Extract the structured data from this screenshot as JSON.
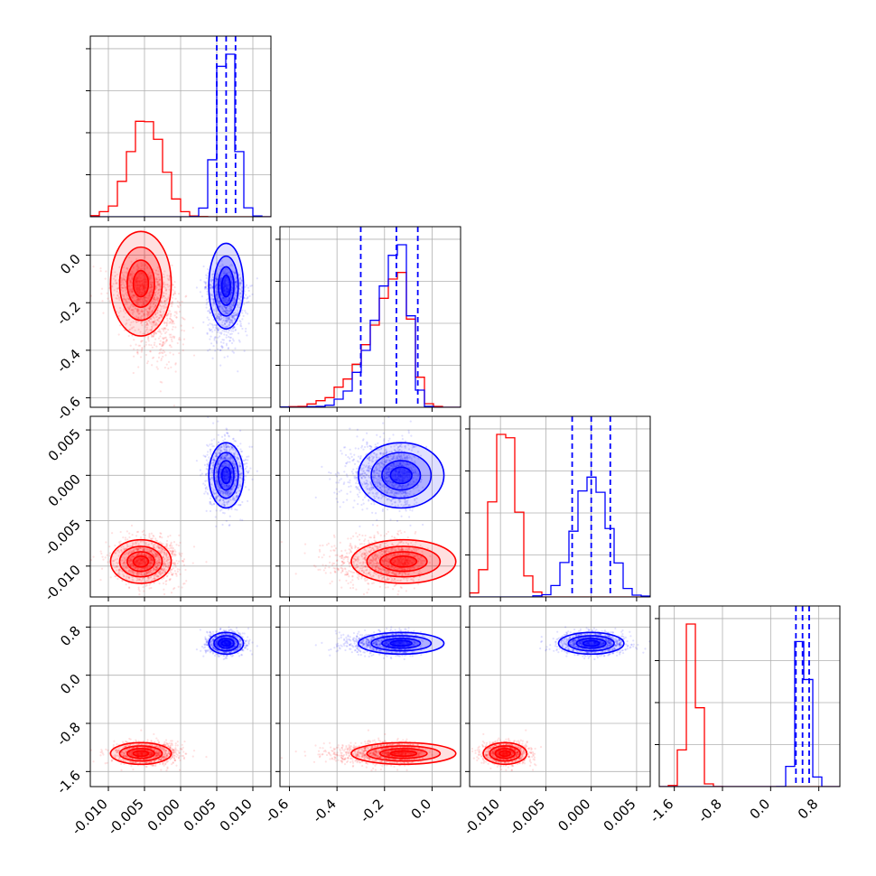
{
  "chart_data": {
    "type": "corner",
    "parameters": 4,
    "ticks": [
      [
        "-0.010",
        "-0.005",
        "0.000",
        "0.005",
        "0.010"
      ],
      [
        "-0.6",
        "-0.4",
        "-0.2",
        "0.0"
      ],
      [
        "-0.010",
        "-0.005",
        "0.000",
        "0.005"
      ],
      [
        "-1.6",
        "-0.8",
        "0.0",
        "0.8"
      ]
    ],
    "tick_values": [
      [
        -0.01,
        -0.005,
        0.0,
        0.005,
        0.01
      ],
      [
        -0.6,
        -0.4,
        -0.2,
        0.0
      ],
      [
        -0.01,
        -0.005,
        0.0,
        0.005
      ],
      [
        -1.6,
        -0.8,
        0.0,
        0.8
      ]
    ],
    "ranges": [
      [
        -0.0125,
        0.0125
      ],
      [
        -0.64,
        0.12
      ],
      [
        -0.0134,
        0.0065
      ],
      [
        -1.85,
        1.15
      ]
    ],
    "series": [
      {
        "color": "#ff0000",
        "mean": [
          -0.0055,
          -0.12,
          -0.0095,
          -1.3
        ],
        "std": [
          0.0021,
          0.11,
          0.0012,
          0.09
        ],
        "skew": [
          0,
          -1,
          0,
          0
        ],
        "quantiles": null
      },
      {
        "color": "#0000ff",
        "mean": [
          0.0063,
          -0.13,
          0.0,
          0.53
        ],
        "std": [
          0.0012,
          0.09,
          0.0018,
          0.09
        ],
        "skew": [
          0,
          -1,
          0,
          0
        ],
        "quantiles": [
          [
            0.005,
            0.0063,
            0.0076
          ],
          [
            -0.3,
            -0.15,
            -0.06
          ],
          [
            -0.0021,
            0.0,
            0.0021
          ],
          [
            0.42,
            0.53,
            0.64
          ]
        ]
      }
    ],
    "grid": true,
    "legend": "none"
  }
}
